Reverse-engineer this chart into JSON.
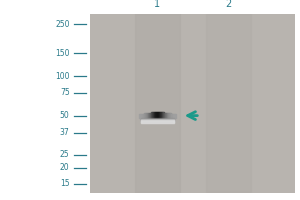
{
  "white_bg": "#ffffff",
  "gel_color": "#b8b4af",
  "lane_color": "#b2aea9",
  "teal_arrow_color": "#1a9a8a",
  "dark_teal_text": "#2a7a8a",
  "marker_labels": [
    "250",
    "150",
    "100",
    "75",
    "50",
    "37",
    "25",
    "20",
    "15"
  ],
  "marker_kda": [
    250,
    150,
    100,
    75,
    50,
    37,
    25,
    20,
    15
  ],
  "band_kda": 50,
  "lane1_label": "1",
  "lane2_label": "2",
  "fig_width": 3.0,
  "fig_height": 2.0,
  "dpi": 100,
  "kda_min": 13,
  "kda_max": 300
}
